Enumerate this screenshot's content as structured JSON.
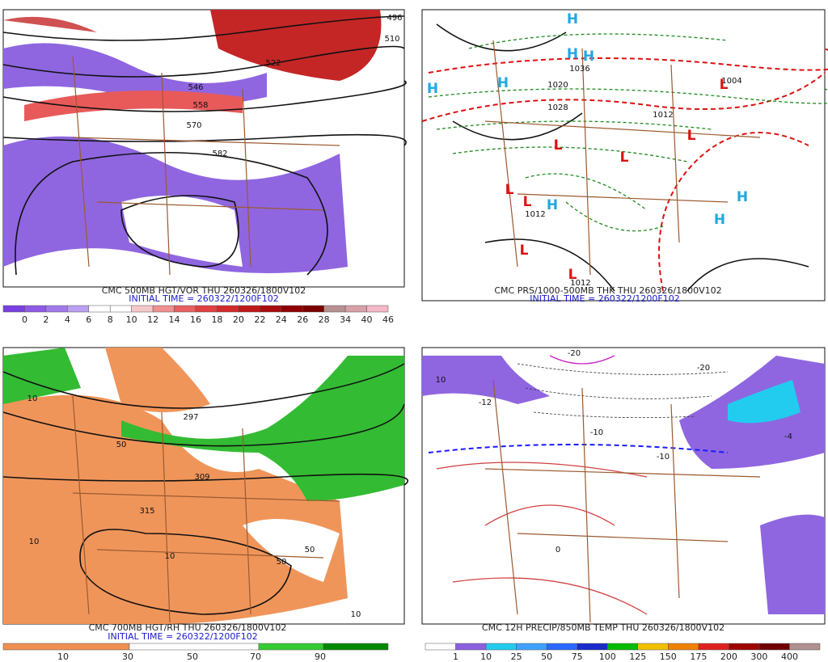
{
  "panels": [
    {
      "caption": "CMC 500MB HGT/VOR THU 260326/1800V102",
      "initial_time": "INITIAL TIME = 260322/1200F102",
      "colorbar": [
        "0",
        "2",
        "4",
        "6",
        "8",
        "10",
        "12",
        "14",
        "16",
        "18",
        "20",
        "22",
        "24",
        "26",
        "28",
        "34",
        "40",
        "46"
      ],
      "labels": [
        "496",
        "510",
        "522",
        "546",
        "558",
        "570",
        "582"
      ]
    },
    {
      "caption": "CMC PRS/1000-500MB THK THU 260326/1800V102",
      "initial_time": "INITIAL TIME = 260322/1200F102",
      "labels": [
        "H",
        "H",
        "H",
        "H",
        "H",
        "H",
        "H",
        "H",
        "L",
        "L",
        "L",
        "L",
        "L",
        "L",
        "L",
        "L",
        "1012",
        "1020",
        "1012",
        "1004",
        "1012",
        "1036",
        "1028"
      ]
    },
    {
      "caption": "CMC 700MB HGT/RH THU 260326/1800V102",
      "initial_time": "INITIAL TIME = 260322/1200F102",
      "colorbar": [
        "10",
        "30",
        "50",
        "70",
        "90"
      ],
      "labels": [
        "10",
        "50",
        "10",
        "10",
        "50",
        "50",
        "10",
        "315",
        "309",
        "297"
      ]
    },
    {
      "caption": "CMC 12H PRECIP/850MB TEMP THU 260326/1800V102",
      "colorbar": [
        "1",
        "10",
        "25",
        "50",
        "75",
        "100",
        "125",
        "150",
        "175",
        "200",
        "300",
        "400"
      ],
      "labels": [
        "-20",
        "-20",
        "-10",
        "-10",
        "0",
        "-12",
        "-4",
        "10"
      ]
    }
  ]
}
